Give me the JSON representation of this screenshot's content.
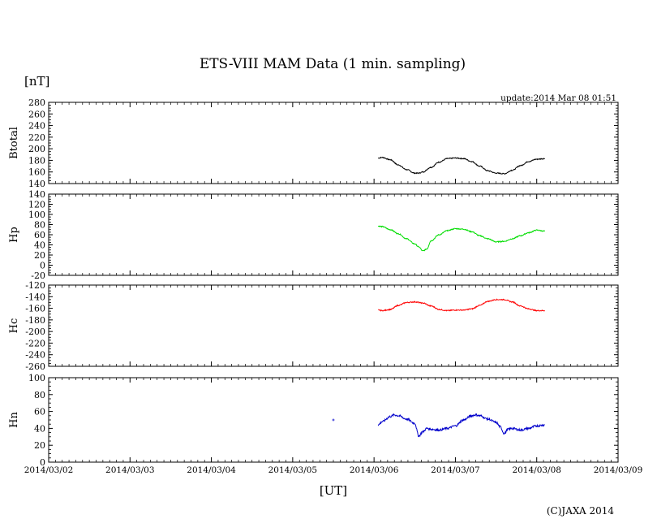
{
  "page": {
    "title": "ETS-VIII MAM Data (1 min. sampling)",
    "unit_label": "[nT]",
    "update_text": "update:2014 Mar 08 01:51",
    "copyright": "(C)JAXA 2014",
    "xlabel": "[UT]"
  },
  "chart_data": [
    {
      "type": "line",
      "name": "btotal",
      "ylabel": "Btotal",
      "color": "#000000",
      "ylim": [
        140,
        280
      ],
      "yticks": [
        140,
        160,
        180,
        200,
        220,
        240,
        260,
        280
      ],
      "x": [
        4.05,
        4.1,
        4.2,
        4.3,
        4.4,
        4.5,
        4.55,
        4.6,
        4.7,
        4.8,
        4.9,
        5.0,
        5.1,
        5.2,
        5.3,
        5.4,
        5.5,
        5.6,
        5.7,
        5.8,
        5.9,
        6.0,
        6.1
      ],
      "values": [
        184,
        185,
        181,
        172,
        164,
        158,
        158,
        160,
        168,
        177,
        183,
        184,
        183,
        178,
        170,
        162,
        158,
        157,
        163,
        171,
        178,
        182,
        183
      ]
    },
    {
      "type": "line",
      "name": "hp",
      "ylabel": "Hp",
      "color": "#00dd00",
      "ylim": [
        -20,
        140
      ],
      "yticks": [
        -20,
        0,
        20,
        40,
        60,
        80,
        100,
        120,
        140
      ],
      "x": [
        4.05,
        4.1,
        4.2,
        4.3,
        4.4,
        4.5,
        4.55,
        4.6,
        4.65,
        4.7,
        4.8,
        4.9,
        5.0,
        5.1,
        5.2,
        5.3,
        5.4,
        5.5,
        5.6,
        5.7,
        5.8,
        5.9,
        6.0,
        6.1
      ],
      "values": [
        77,
        76,
        70,
        62,
        52,
        42,
        36,
        28,
        32,
        48,
        60,
        68,
        72,
        71,
        66,
        58,
        52,
        46,
        47,
        52,
        58,
        64,
        69,
        67
      ]
    },
    {
      "type": "line",
      "name": "hc",
      "ylabel": "Hc",
      "color": "#ff0000",
      "ylim": [
        -260,
        -120
      ],
      "yticks": [
        -260,
        -240,
        -220,
        -200,
        -180,
        -160,
        -140,
        -120
      ],
      "x": [
        4.05,
        4.1,
        4.2,
        4.3,
        4.4,
        4.5,
        4.6,
        4.7,
        4.8,
        4.9,
        5.0,
        5.1,
        5.2,
        5.3,
        5.4,
        5.5,
        5.6,
        5.7,
        5.8,
        5.9,
        6.0,
        6.1
      ],
      "values": [
        -163,
        -164,
        -162,
        -155,
        -150,
        -149,
        -151,
        -156,
        -162,
        -164,
        -163,
        -163,
        -161,
        -155,
        -148,
        -145,
        -145,
        -149,
        -156,
        -161,
        -164,
        -164
      ]
    },
    {
      "type": "line",
      "name": "hn",
      "ylabel": "Hn",
      "color": "#0000cc",
      "ylim": [
        0,
        100
      ],
      "yticks": [
        0,
        20,
        40,
        60,
        80,
        100
      ],
      "x": [
        4.05,
        4.1,
        4.2,
        4.25,
        4.3,
        4.4,
        4.5,
        4.55,
        4.6,
        4.65,
        4.7,
        4.8,
        4.9,
        5.0,
        5.1,
        5.2,
        5.25,
        5.3,
        5.4,
        5.5,
        5.55,
        5.6,
        5.65,
        5.7,
        5.8,
        5.9,
        6.0,
        6.1
      ],
      "values": [
        44,
        48,
        54,
        56,
        55,
        51,
        46,
        31,
        36,
        40,
        39,
        38,
        40,
        43,
        50,
        55,
        56,
        55,
        51,
        47,
        42,
        34,
        39,
        40,
        38,
        40,
        43,
        44
      ],
      "outlier": {
        "x": 3.5,
        "y": 50
      }
    }
  ],
  "x_axis": {
    "ticks": [
      "2014/03/02",
      "2014/03/03",
      "2014/03/04",
      "2014/03/05",
      "2014/03/06",
      "2014/03/07",
      "2014/03/08",
      "2014/03/09"
    ]
  }
}
